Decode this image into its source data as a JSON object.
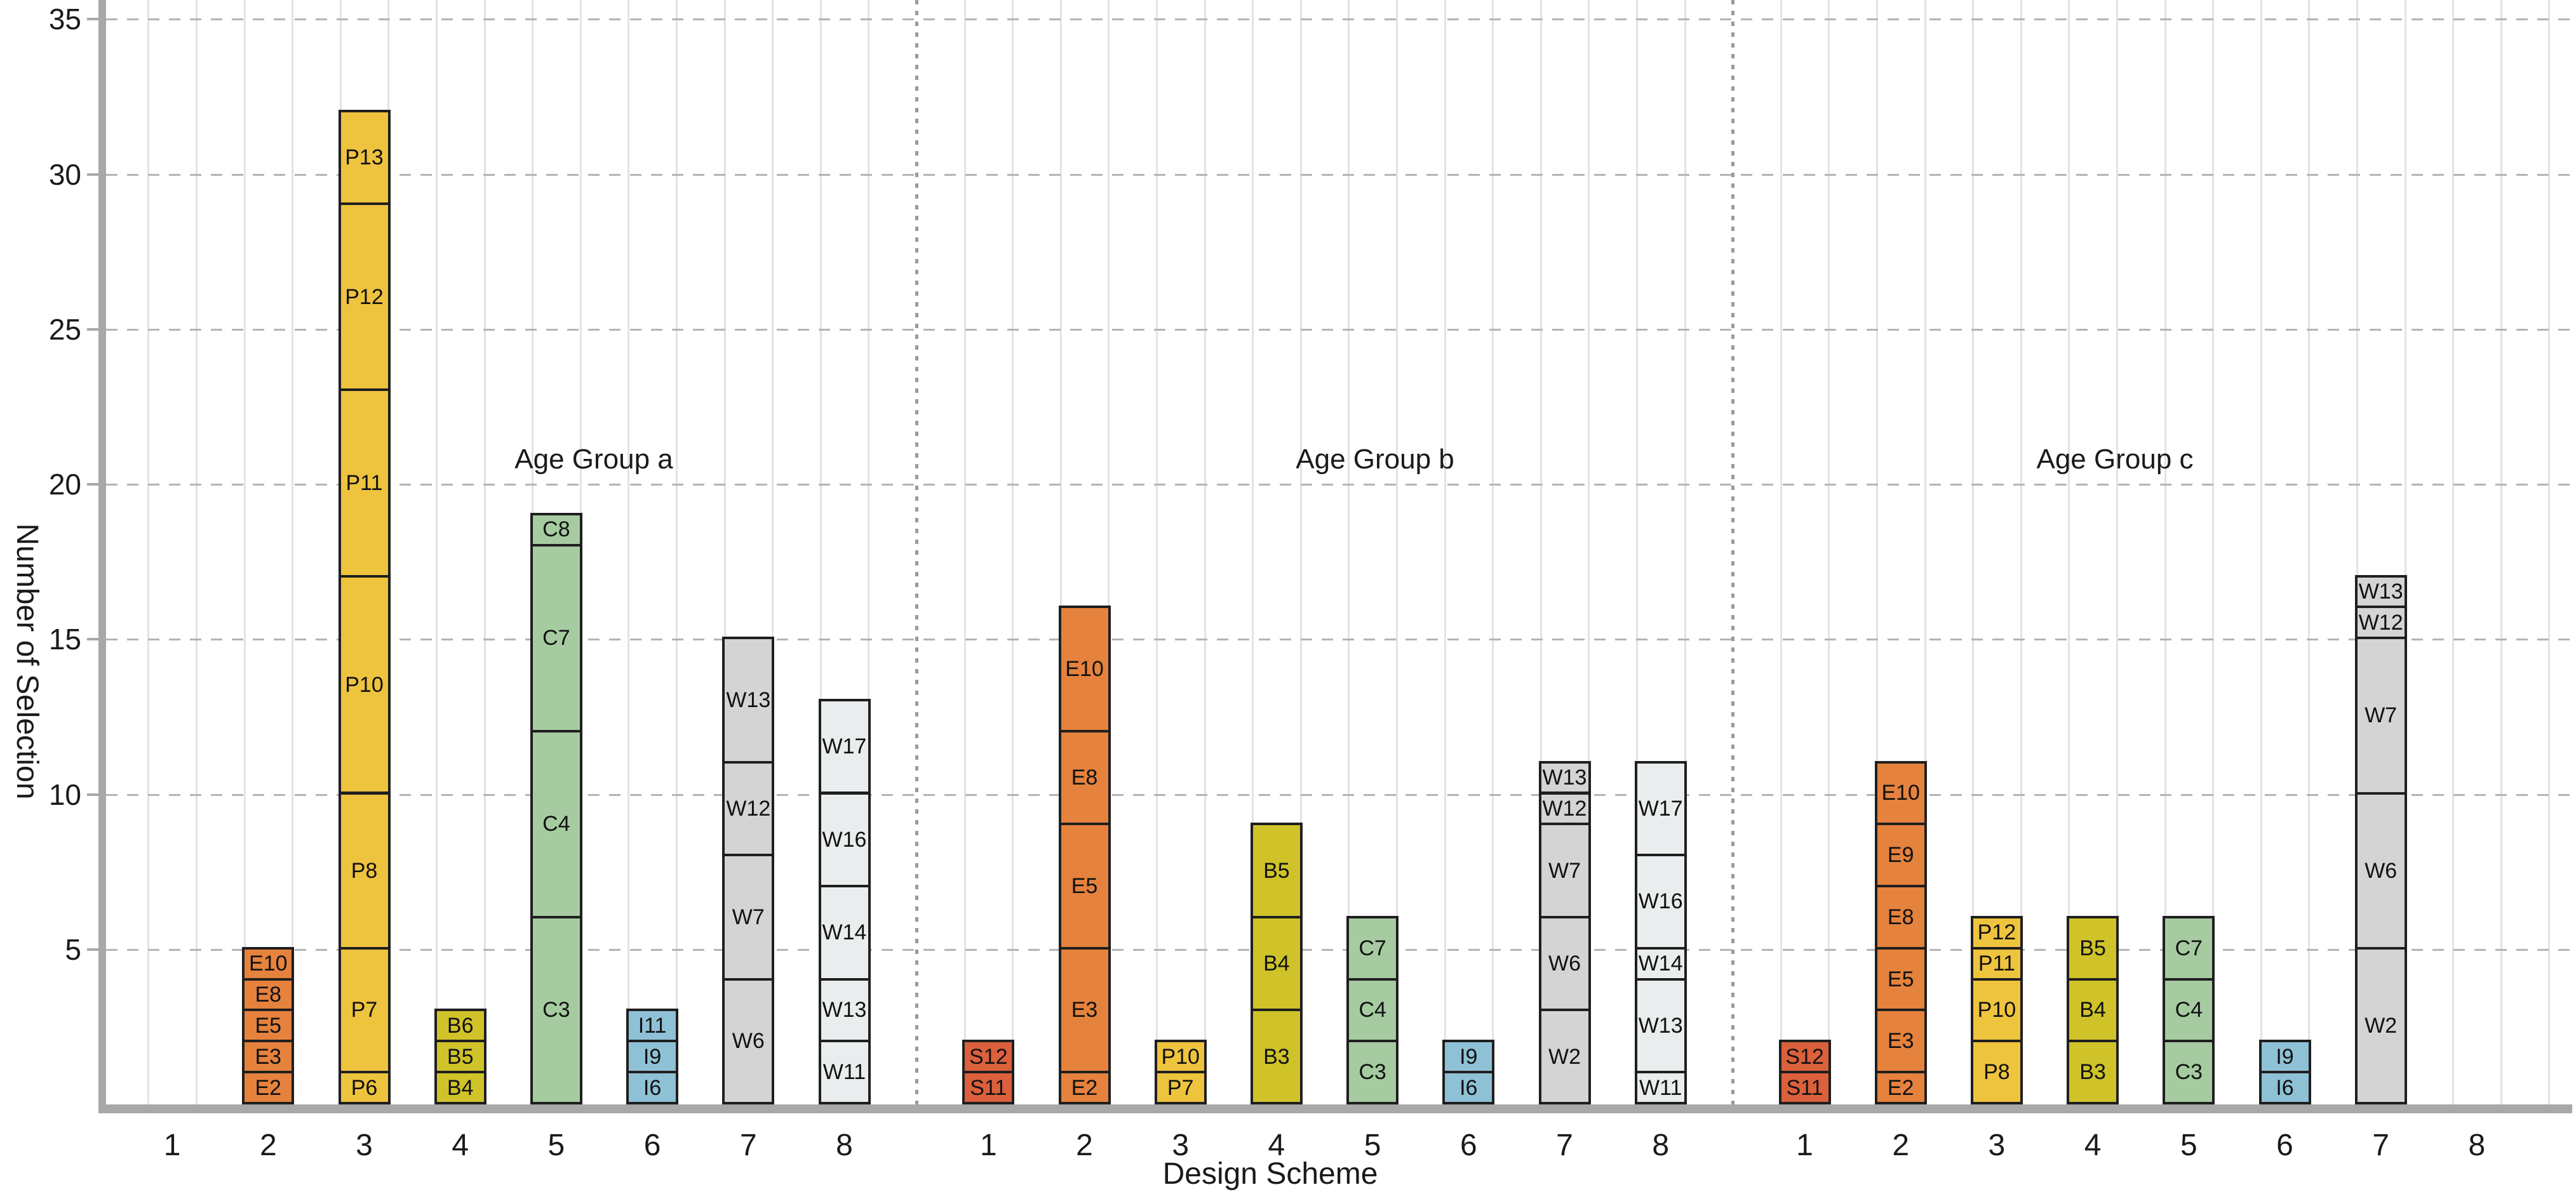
{
  "chart_data": {
    "type": "stacked-bar",
    "ylabel": "Number of Selection",
    "xlabel": "Design Scheme",
    "yticks": [
      5,
      10,
      15,
      20,
      25,
      30,
      35
    ],
    "ylim": [
      0,
      35.6
    ],
    "x_tick_labels": [
      "1",
      "2",
      "3",
      "4",
      "5",
      "6",
      "7",
      "8"
    ],
    "grid": {
      "horizontal": "dashed",
      "vertical": "solid-light",
      "group_separator": "dotted"
    },
    "colors": {
      "S": "#db603c",
      "E": "#e5823d",
      "P": "#eec33e",
      "B": "#cfc329",
      "C": "#a6cba1",
      "I": "#8ec1d6",
      "W": "#d4d4d4",
      "W_light": "#e9edee"
    },
    "groups": [
      {
        "label": "Age Group a",
        "bars": [
          {
            "scheme": "1",
            "color": "S",
            "segments": []
          },
          {
            "scheme": "2",
            "color": "E",
            "segments": [
              {
                "label": "E2",
                "value": 1
              },
              {
                "label": "E3",
                "value": 1
              },
              {
                "label": "E5",
                "value": 1
              },
              {
                "label": "E8",
                "value": 1
              },
              {
                "label": "E10",
                "value": 1
              }
            ]
          },
          {
            "scheme": "3",
            "color": "P",
            "segments": [
              {
                "label": "P6",
                "value": 1
              },
              {
                "label": "P7",
                "value": 4
              },
              {
                "label": "P8",
                "value": 5
              },
              {
                "label": "P10",
                "value": 7
              },
              {
                "label": "P11",
                "value": 6
              },
              {
                "label": "P12",
                "value": 6
              },
              {
                "label": "P13",
                "value": 3
              }
            ]
          },
          {
            "scheme": "4",
            "color": "B",
            "segments": [
              {
                "label": "B4",
                "value": 1
              },
              {
                "label": "B5",
                "value": 1
              },
              {
                "label": "B6",
                "value": 1
              }
            ]
          },
          {
            "scheme": "5",
            "color": "C",
            "segments": [
              {
                "label": "C3",
                "value": 6
              },
              {
                "label": "C4",
                "value": 6
              },
              {
                "label": "C7",
                "value": 6
              },
              {
                "label": "C8",
                "value": 1
              }
            ]
          },
          {
            "scheme": "6",
            "color": "I",
            "segments": [
              {
                "label": "I6",
                "value": 1
              },
              {
                "label": "I9",
                "value": 1
              },
              {
                "label": "I11",
                "value": 1
              }
            ]
          },
          {
            "scheme": "7",
            "color": "W",
            "segments": [
              {
                "label": "W6",
                "value": 4
              },
              {
                "label": "W7",
                "value": 4
              },
              {
                "label": "W12",
                "value": 3
              },
              {
                "label": "W13",
                "value": 4
              }
            ]
          },
          {
            "scheme": "8",
            "color": "W_light",
            "segments": [
              {
                "label": "W11",
                "value": 2
              },
              {
                "label": "W13",
                "value": 2
              },
              {
                "label": "W14",
                "value": 3
              },
              {
                "label": "W16",
                "value": 3
              },
              {
                "label": "W17",
                "value": 3
              }
            ]
          }
        ]
      },
      {
        "label": "Age Group b",
        "bars": [
          {
            "scheme": "1",
            "color": "S",
            "segments": [
              {
                "label": "S11",
                "value": 1
              },
              {
                "label": "S12",
                "value": 1
              }
            ]
          },
          {
            "scheme": "2",
            "color": "E",
            "segments": [
              {
                "label": "E2",
                "value": 1
              },
              {
                "label": "E3",
                "value": 4
              },
              {
                "label": "E5",
                "value": 4
              },
              {
                "label": "E8",
                "value": 3
              },
              {
                "label": "E10",
                "value": 4
              }
            ]
          },
          {
            "scheme": "3",
            "color": "P",
            "segments": [
              {
                "label": "P7",
                "value": 1
              },
              {
                "label": "P10",
                "value": 1
              }
            ]
          },
          {
            "scheme": "4",
            "color": "B",
            "segments": [
              {
                "label": "B3",
                "value": 3
              },
              {
                "label": "B4",
                "value": 3
              },
              {
                "label": "B5",
                "value": 3
              }
            ]
          },
          {
            "scheme": "5",
            "color": "C",
            "segments": [
              {
                "label": "C3",
                "value": 2
              },
              {
                "label": "C4",
                "value": 2
              },
              {
                "label": "C7",
                "value": 2
              }
            ]
          },
          {
            "scheme": "6",
            "color": "I",
            "segments": [
              {
                "label": "I6",
                "value": 1
              },
              {
                "label": "I9",
                "value": 1
              }
            ]
          },
          {
            "scheme": "7",
            "color": "W",
            "segments": [
              {
                "label": "W2",
                "value": 3
              },
              {
                "label": "W6",
                "value": 3
              },
              {
                "label": "W7",
                "value": 3
              },
              {
                "label": "W12",
                "value": 1
              },
              {
                "label": "W13",
                "value": 1
              }
            ]
          },
          {
            "scheme": "8",
            "color": "W_light",
            "segments": [
              {
                "label": "W11",
                "value": 1
              },
              {
                "label": "W13",
                "value": 3
              },
              {
                "label": "W14",
                "value": 1
              },
              {
                "label": "W16",
                "value": 3
              },
              {
                "label": "W17",
                "value": 3
              }
            ]
          }
        ]
      },
      {
        "label": "Age Group c",
        "bars": [
          {
            "scheme": "1",
            "color": "S",
            "segments": [
              {
                "label": "S11",
                "value": 1
              },
              {
                "label": "S12",
                "value": 1
              }
            ]
          },
          {
            "scheme": "2",
            "color": "E",
            "segments": [
              {
                "label": "E2",
                "value": 1
              },
              {
                "label": "E3",
                "value": 2
              },
              {
                "label": "E5",
                "value": 2
              },
              {
                "label": "E8",
                "value": 2
              },
              {
                "label": "E9",
                "value": 2
              },
              {
                "label": "E10",
                "value": 2
              }
            ]
          },
          {
            "scheme": "3",
            "color": "P",
            "segments": [
              {
                "label": "P8",
                "value": 2
              },
              {
                "label": "P10",
                "value": 2
              },
              {
                "label": "P11",
                "value": 1
              },
              {
                "label": "P12",
                "value": 1
              }
            ]
          },
          {
            "scheme": "4",
            "color": "B",
            "segments": [
              {
                "label": "B3",
                "value": 2
              },
              {
                "label": "B4",
                "value": 2
              },
              {
                "label": "B5",
                "value": 2
              }
            ]
          },
          {
            "scheme": "5",
            "color": "C",
            "segments": [
              {
                "label": "C3",
                "value": 2
              },
              {
                "label": "C4",
                "value": 2
              },
              {
                "label": "C7",
                "value": 2
              }
            ]
          },
          {
            "scheme": "6",
            "color": "I",
            "segments": [
              {
                "label": "I6",
                "value": 1
              },
              {
                "label": "I9",
                "value": 1
              }
            ]
          },
          {
            "scheme": "7",
            "color": "W",
            "segments": [
              {
                "label": "W2",
                "value": 5
              },
              {
                "label": "W6",
                "value": 5
              },
              {
                "label": "W7",
                "value": 5
              },
              {
                "label": "W12",
                "value": 1
              },
              {
                "label": "W13",
                "value": 1
              }
            ]
          },
          {
            "scheme": "8",
            "color": "W_light",
            "segments": []
          }
        ]
      }
    ]
  }
}
